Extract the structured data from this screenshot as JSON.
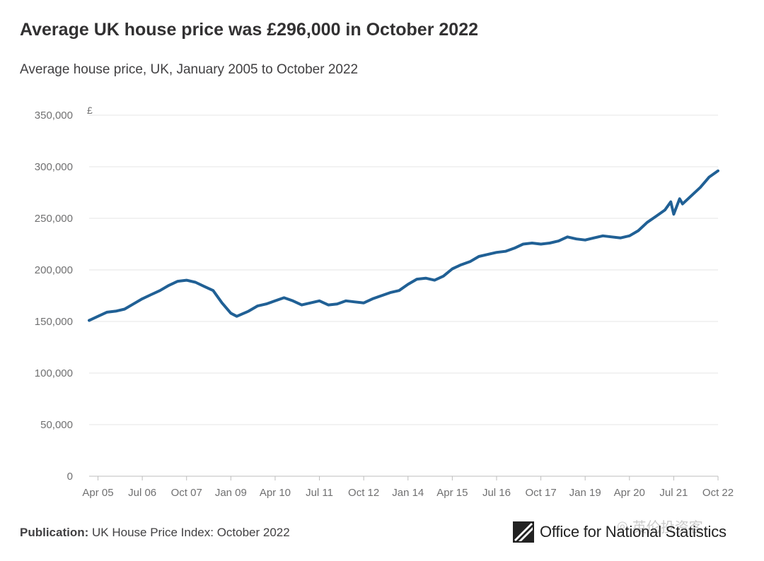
{
  "header": {
    "title": "Average UK house price was £296,000 in October 2022",
    "subtitle": "Average house price, UK, January 2005 to October 2022"
  },
  "footer": {
    "publication_label": "Publication:",
    "publication_value": "UK House Price Index: October 2022",
    "logo_text": "Office for National Statistics",
    "watermark_text": "英伦投资客"
  },
  "colors": {
    "line": "#206095",
    "grid": "#e6e6e6",
    "axis_text": "#707071"
  },
  "chart_data": {
    "type": "line",
    "title": "Average UK house price was £296,000 in October 2022",
    "subtitle": "Average house price, UK, January 2005 to October 2022",
    "ylabel_unit": "£",
    "xlabel": "",
    "ylim": [
      0,
      350000
    ],
    "y_ticks": [
      0,
      50000,
      100000,
      150000,
      200000,
      250000,
      300000,
      350000
    ],
    "y_tick_labels": [
      "0",
      "50,000",
      "100,000",
      "150,000",
      "200,000",
      "250,000",
      "300,000",
      "350,000"
    ],
    "x_range": [
      "2005-01",
      "2022-10"
    ],
    "x_ticks": [
      "2005-04",
      "2006-07",
      "2007-10",
      "2009-01",
      "2010-04",
      "2011-07",
      "2012-10",
      "2014-01",
      "2015-04",
      "2016-07",
      "2017-10",
      "2019-01",
      "2020-04",
      "2021-07",
      "2022-10"
    ],
    "x_tick_labels": [
      "Apr 05",
      "Jul 06",
      "Oct 07",
      "Jan 09",
      "Apr 10",
      "Jul 11",
      "Oct 12",
      "Jan 14",
      "Apr 15",
      "Jul 16",
      "Oct 17",
      "Jan 19",
      "Apr 20",
      "Jul 21",
      "Oct 22"
    ],
    "grid": true,
    "legend": "none",
    "series": [
      {
        "x": [
          "2005-01",
          "2005-04",
          "2005-07",
          "2005-10",
          "2006-01",
          "2006-04",
          "2006-07",
          "2006-10",
          "2007-01",
          "2007-04",
          "2007-07",
          "2007-10",
          "2008-01",
          "2008-04",
          "2008-07",
          "2008-10",
          "2009-01",
          "2009-03",
          "2009-07",
          "2009-10",
          "2010-01",
          "2010-04",
          "2010-07",
          "2010-10",
          "2011-01",
          "2011-04",
          "2011-07",
          "2011-10",
          "2012-01",
          "2012-04",
          "2012-07",
          "2012-10",
          "2013-01",
          "2013-04",
          "2013-07",
          "2013-10",
          "2014-01",
          "2014-04",
          "2014-07",
          "2014-10",
          "2015-01",
          "2015-04",
          "2015-07",
          "2015-10",
          "2016-01",
          "2016-04",
          "2016-07",
          "2016-10",
          "2017-01",
          "2017-04",
          "2017-07",
          "2017-10",
          "2018-01",
          "2018-04",
          "2018-07",
          "2018-10",
          "2019-01",
          "2019-04",
          "2019-07",
          "2019-10",
          "2020-01",
          "2020-04",
          "2020-07",
          "2020-10",
          "2021-01",
          "2021-04",
          "2021-06",
          "2021-07",
          "2021-09",
          "2021-10",
          "2022-01",
          "2022-04",
          "2022-07",
          "2022-10"
        ],
        "values": [
          151000,
          155000,
          159000,
          160000,
          162000,
          167000,
          172000,
          176000,
          180000,
          185000,
          189000,
          190000,
          188000,
          184000,
          180000,
          168000,
          158000,
          155000,
          160000,
          165000,
          167000,
          170000,
          173000,
          170000,
          166000,
          168000,
          170000,
          166000,
          167000,
          170000,
          169000,
          168000,
          172000,
          175000,
          178000,
          180000,
          186000,
          191000,
          192000,
          190000,
          194000,
          201000,
          205000,
          208000,
          213000,
          215000,
          217000,
          218000,
          221000,
          225000,
          226000,
          225000,
          226000,
          228000,
          232000,
          230000,
          229000,
          231000,
          233000,
          232000,
          231000,
          233000,
          238000,
          246000,
          252000,
          258000,
          266000,
          254000,
          269000,
          264000,
          272000,
          280000,
          290000,
          296000
        ]
      }
    ]
  }
}
